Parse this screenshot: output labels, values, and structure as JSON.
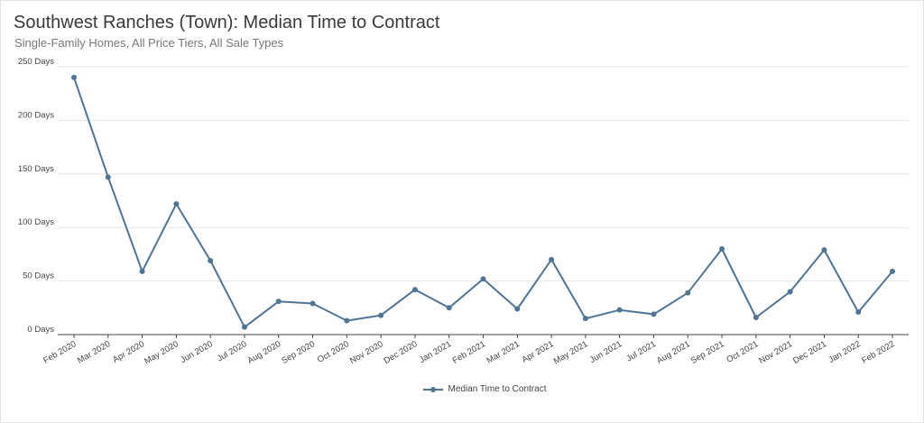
{
  "chart_data": {
    "type": "line",
    "title": "Southwest Ranches (Town): Median Time to Contract",
    "subtitle": "Single-Family Homes, All Price Tiers, All Sale Types",
    "categories": [
      "Feb 2020",
      "Mar 2020",
      "Apr 2020",
      "May 2020",
      "Jun 2020",
      "Jul 2020",
      "Aug 2020",
      "Sep 2020",
      "Oct 2020",
      "Nov 2020",
      "Dec 2020",
      "Jan 2021",
      "Feb 2021",
      "Mar 2021",
      "Apr 2021",
      "May 2021",
      "Jun 2021",
      "Jul 2021",
      "Aug 2021",
      "Sep 2021",
      "Oct 2021",
      "Nov 2021",
      "Dec 2021",
      "Jan 2022",
      "Feb 2022"
    ],
    "series": [
      {
        "name": "Median Time to Contract",
        "values": [
          240,
          147,
          59,
          122,
          69,
          7,
          31,
          29,
          13,
          18,
          42,
          25,
          52,
          24,
          70,
          15,
          23,
          19,
          39,
          80,
          16,
          40,
          79,
          21,
          59
        ]
      }
    ],
    "ylim": [
      0,
      250
    ],
    "yticks": [
      0,
      50,
      100,
      150,
      200,
      250
    ],
    "ytick_labels": [
      "0 Days",
      "50 Days",
      "100 Days",
      "150 Days",
      "200 Days",
      "250 Days"
    ],
    "grid": true,
    "legend": "bottom",
    "colors": {
      "line": "#4f7494",
      "grid": "#e6e6e6",
      "axis": "#444444"
    }
  }
}
